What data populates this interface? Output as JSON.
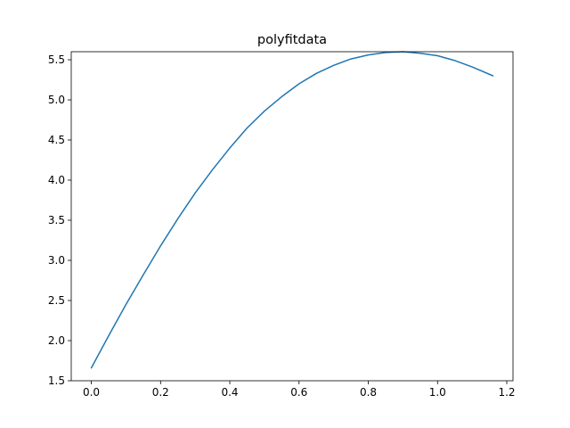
{
  "chart_data": {
    "type": "line",
    "title": "polyfitdata",
    "xlabel": "",
    "ylabel": "",
    "xlim": [
      -0.058,
      1.218
    ],
    "ylim": [
      1.5,
      5.6
    ],
    "grid": false,
    "legend": "none",
    "x_ticks": [
      0.0,
      0.2,
      0.4,
      0.6,
      0.8,
      1.0,
      1.2
    ],
    "x_tick_labels": [
      "0.0",
      "0.2",
      "0.4",
      "0.6",
      "0.8",
      "1.0",
      "1.2"
    ],
    "y_ticks": [
      1.5,
      2.0,
      2.5,
      3.0,
      3.5,
      4.0,
      4.5,
      5.0,
      5.5
    ],
    "y_tick_labels": [
      "1.5",
      "2.0",
      "2.5",
      "3.0",
      "3.5",
      "4.0",
      "4.5",
      "5.0",
      "5.5"
    ],
    "series": [
      {
        "color": "#1f77b4",
        "x": [
          0.0,
          0.05,
          0.1,
          0.15,
          0.2,
          0.25,
          0.3,
          0.35,
          0.4,
          0.45,
          0.5,
          0.55,
          0.6,
          0.65,
          0.7,
          0.75,
          0.8,
          0.85,
          0.9,
          0.95,
          1.0,
          1.05,
          1.1,
          1.16
        ],
        "y": [
          1.66,
          2.06,
          2.45,
          2.82,
          3.18,
          3.52,
          3.84,
          4.13,
          4.4,
          4.65,
          4.86,
          5.04,
          5.2,
          5.33,
          5.43,
          5.51,
          5.56,
          5.59,
          5.6,
          5.58,
          5.55,
          5.49,
          5.41,
          5.3
        ]
      }
    ]
  }
}
